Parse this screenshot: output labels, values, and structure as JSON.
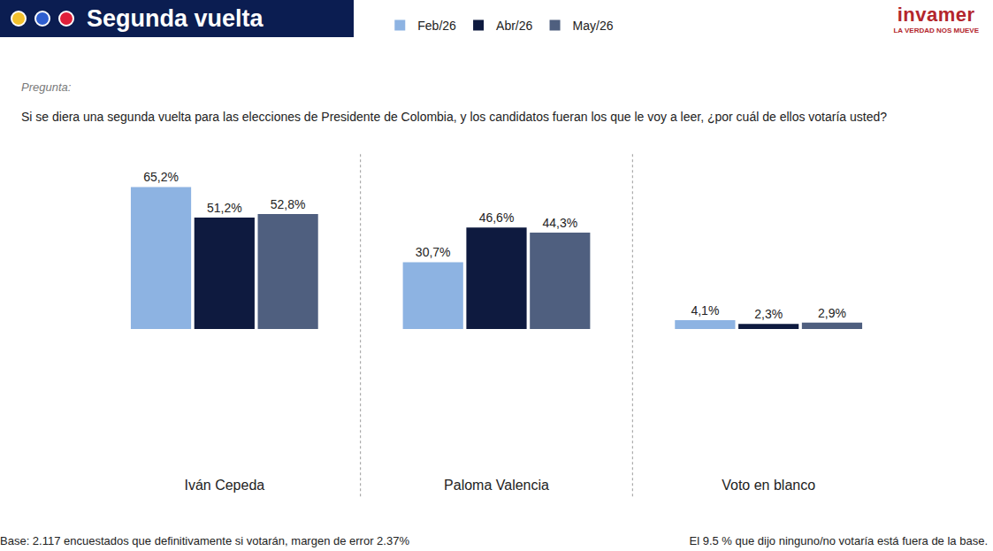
{
  "header": {
    "title": "Segunda vuelta",
    "logo": "invamer",
    "logo_tagline": "LA VERDAD NOS MUEVE"
  },
  "question_label": "Pregunta:",
  "question": "Si se diera una segunda vuelta para las elecciones de Presidente de Colombia, y los candidatos fueran los que le voy a leer, ¿por cuál de ellos votaría usted?",
  "chart_data": {
    "type": "bar",
    "categories": [
      "Iván Cepeda",
      "Paloma Valencia",
      "Voto en blanco"
    ],
    "series": [
      {
        "name": "Feb/26",
        "color": "#8db3e2",
        "values": [
          65.2,
          30.7,
          4.1
        ],
        "value_labels": [
          "65,2%",
          "30,7%",
          "4,1%"
        ]
      },
      {
        "name": "Abr/26",
        "color": "#0e1a3f",
        "values": [
          51.2,
          46.6,
          2.3
        ],
        "value_labels": [
          "51,2%",
          "46,6%",
          "2,3%"
        ]
      },
      {
        "name": "May/26",
        "color": "#4f5f7f",
        "values": [
          52.8,
          44.3,
          2.9
        ],
        "value_labels": [
          "52,8%",
          "44,3%",
          "2,9%"
        ]
      }
    ],
    "data_labels": true,
    "tick_labels": "x",
    "legend": "top",
    "grid": false
  },
  "footer": {
    "base": "Base: 2.117 encuestados que definitivamente si votarán, margen de error 2.37%",
    "note": "El 9.5 % que dijo ninguno/no votaría está fuera de la base."
  }
}
